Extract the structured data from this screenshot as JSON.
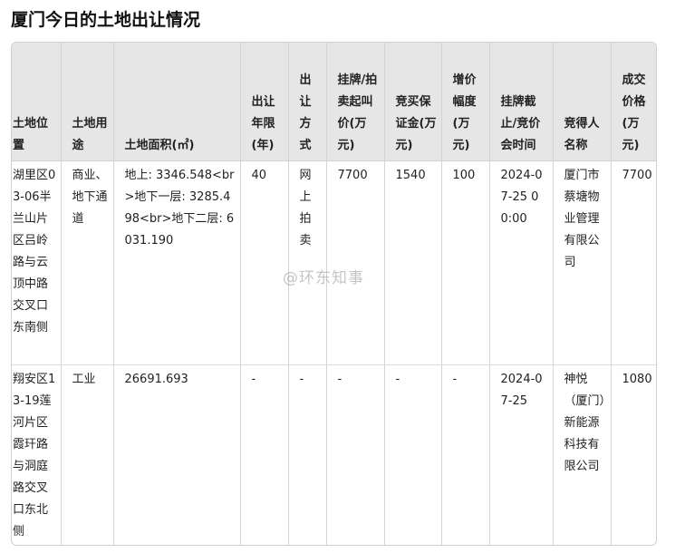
{
  "title": "厦门今日的土地出让情况",
  "watermark": "@环东知事",
  "table": {
    "headers": [
      "土地位置",
      "土地用途",
      "土地面积(㎡)",
      "出让年限(年)",
      "出让方式",
      "挂牌/拍卖起叫价(万元)",
      "竞买保证金(万元)",
      "增价幅度(万元)",
      "挂牌截止/竞价会时间",
      "竞得人名称",
      "成交价格(万元)"
    ],
    "rows": [
      [
        "湖里区03-06半兰山片区吕岭路与云顶中路交叉口东南侧",
        "商业、地下通道",
        "地上: 3346.548<br>地下一层: 3285.498<br>地下二层: 6031.190",
        "40",
        "网上拍卖",
        "7700",
        "1540",
        "100",
        "2024-07-25 00:00",
        "厦门市蔡塘物业管理有限公司",
        "7700"
      ],
      [
        "翔安区13-19莲河片区霞玕路与洞庭路交叉口东北侧",
        "工业",
        "26691.693",
        "-",
        "-",
        "-",
        "-",
        "-",
        "2024-07-25",
        "神悦（厦门）新能源科技有限公司",
        "1080"
      ]
    ]
  }
}
